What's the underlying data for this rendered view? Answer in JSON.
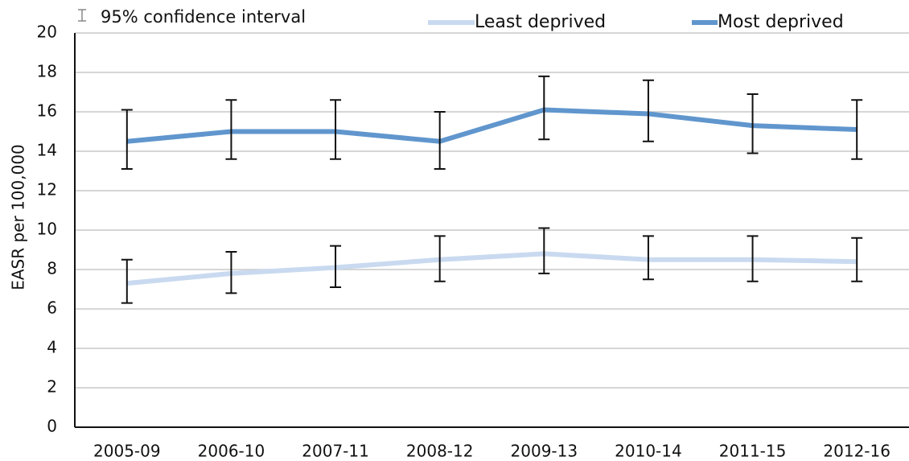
{
  "chart_data": {
    "type": "line",
    "y_label": "EASR per 100,000",
    "ci_label": "95% confidence interval",
    "categories": [
      "2005-09",
      "2006-10",
      "2007-11",
      "2008-12",
      "2009-13",
      "2010-14",
      "2011-15",
      "2012-16"
    ],
    "series": [
      {
        "name": "Least deprived",
        "color": "#c9daf0",
        "values": [
          7.3,
          7.8,
          8.1,
          8.5,
          8.8,
          8.5,
          8.5,
          8.4
        ],
        "lower": [
          6.3,
          6.8,
          7.1,
          7.4,
          7.8,
          7.5,
          7.4,
          7.4
        ],
        "upper": [
          8.5,
          8.9,
          9.2,
          9.7,
          10.1,
          9.7,
          9.7,
          9.6
        ]
      },
      {
        "name": "Most deprived",
        "color": "#6096cd",
        "values": [
          14.5,
          15.0,
          15.0,
          14.5,
          16.1,
          15.9,
          15.3,
          15.1
        ],
        "lower": [
          13.1,
          13.6,
          13.6,
          13.1,
          14.6,
          14.5,
          13.9,
          13.6
        ],
        "upper": [
          16.1,
          16.6,
          16.6,
          16.0,
          17.8,
          17.6,
          16.9,
          16.6
        ]
      }
    ],
    "ylim": [
      0,
      20
    ],
    "yticks": [
      0,
      2,
      4,
      6,
      8,
      10,
      12,
      14,
      16,
      18,
      20
    ],
    "grid": true
  }
}
